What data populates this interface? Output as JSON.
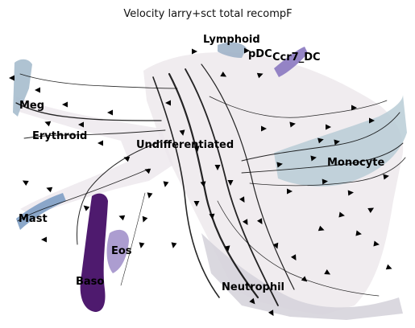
{
  "chart_data": {
    "type": "scatter",
    "title": "Velocity larry+sct total recompF",
    "xlabel": "",
    "ylabel": "",
    "grid": false,
    "legend": "on data",
    "overlay": "velocity streamlines with arrowheads",
    "clusters": [
      {
        "label": "Lymphoid",
        "color": "#9fb3c8"
      },
      {
        "label": "pDC",
        "color": "#b7a5cf"
      },
      {
        "label": "Ccr7_DC",
        "color": "#8a78c0"
      },
      {
        "label": "Meg",
        "color": "#8fa9c0"
      },
      {
        "label": "Erythroid",
        "color": "#7f9ec2"
      },
      {
        "label": "Undifferentiated",
        "color": "#e4d9dd"
      },
      {
        "label": "Monocyte",
        "color": "#b8cdd6"
      },
      {
        "label": "Mast",
        "color": "#7e9fc4"
      },
      {
        "label": "Eos",
        "color": "#9d8cc8"
      },
      {
        "label": "Baso",
        "color": "#4e1a6e"
      },
      {
        "label": "Neutrophil",
        "color": "#d6d4dc"
      }
    ]
  }
}
